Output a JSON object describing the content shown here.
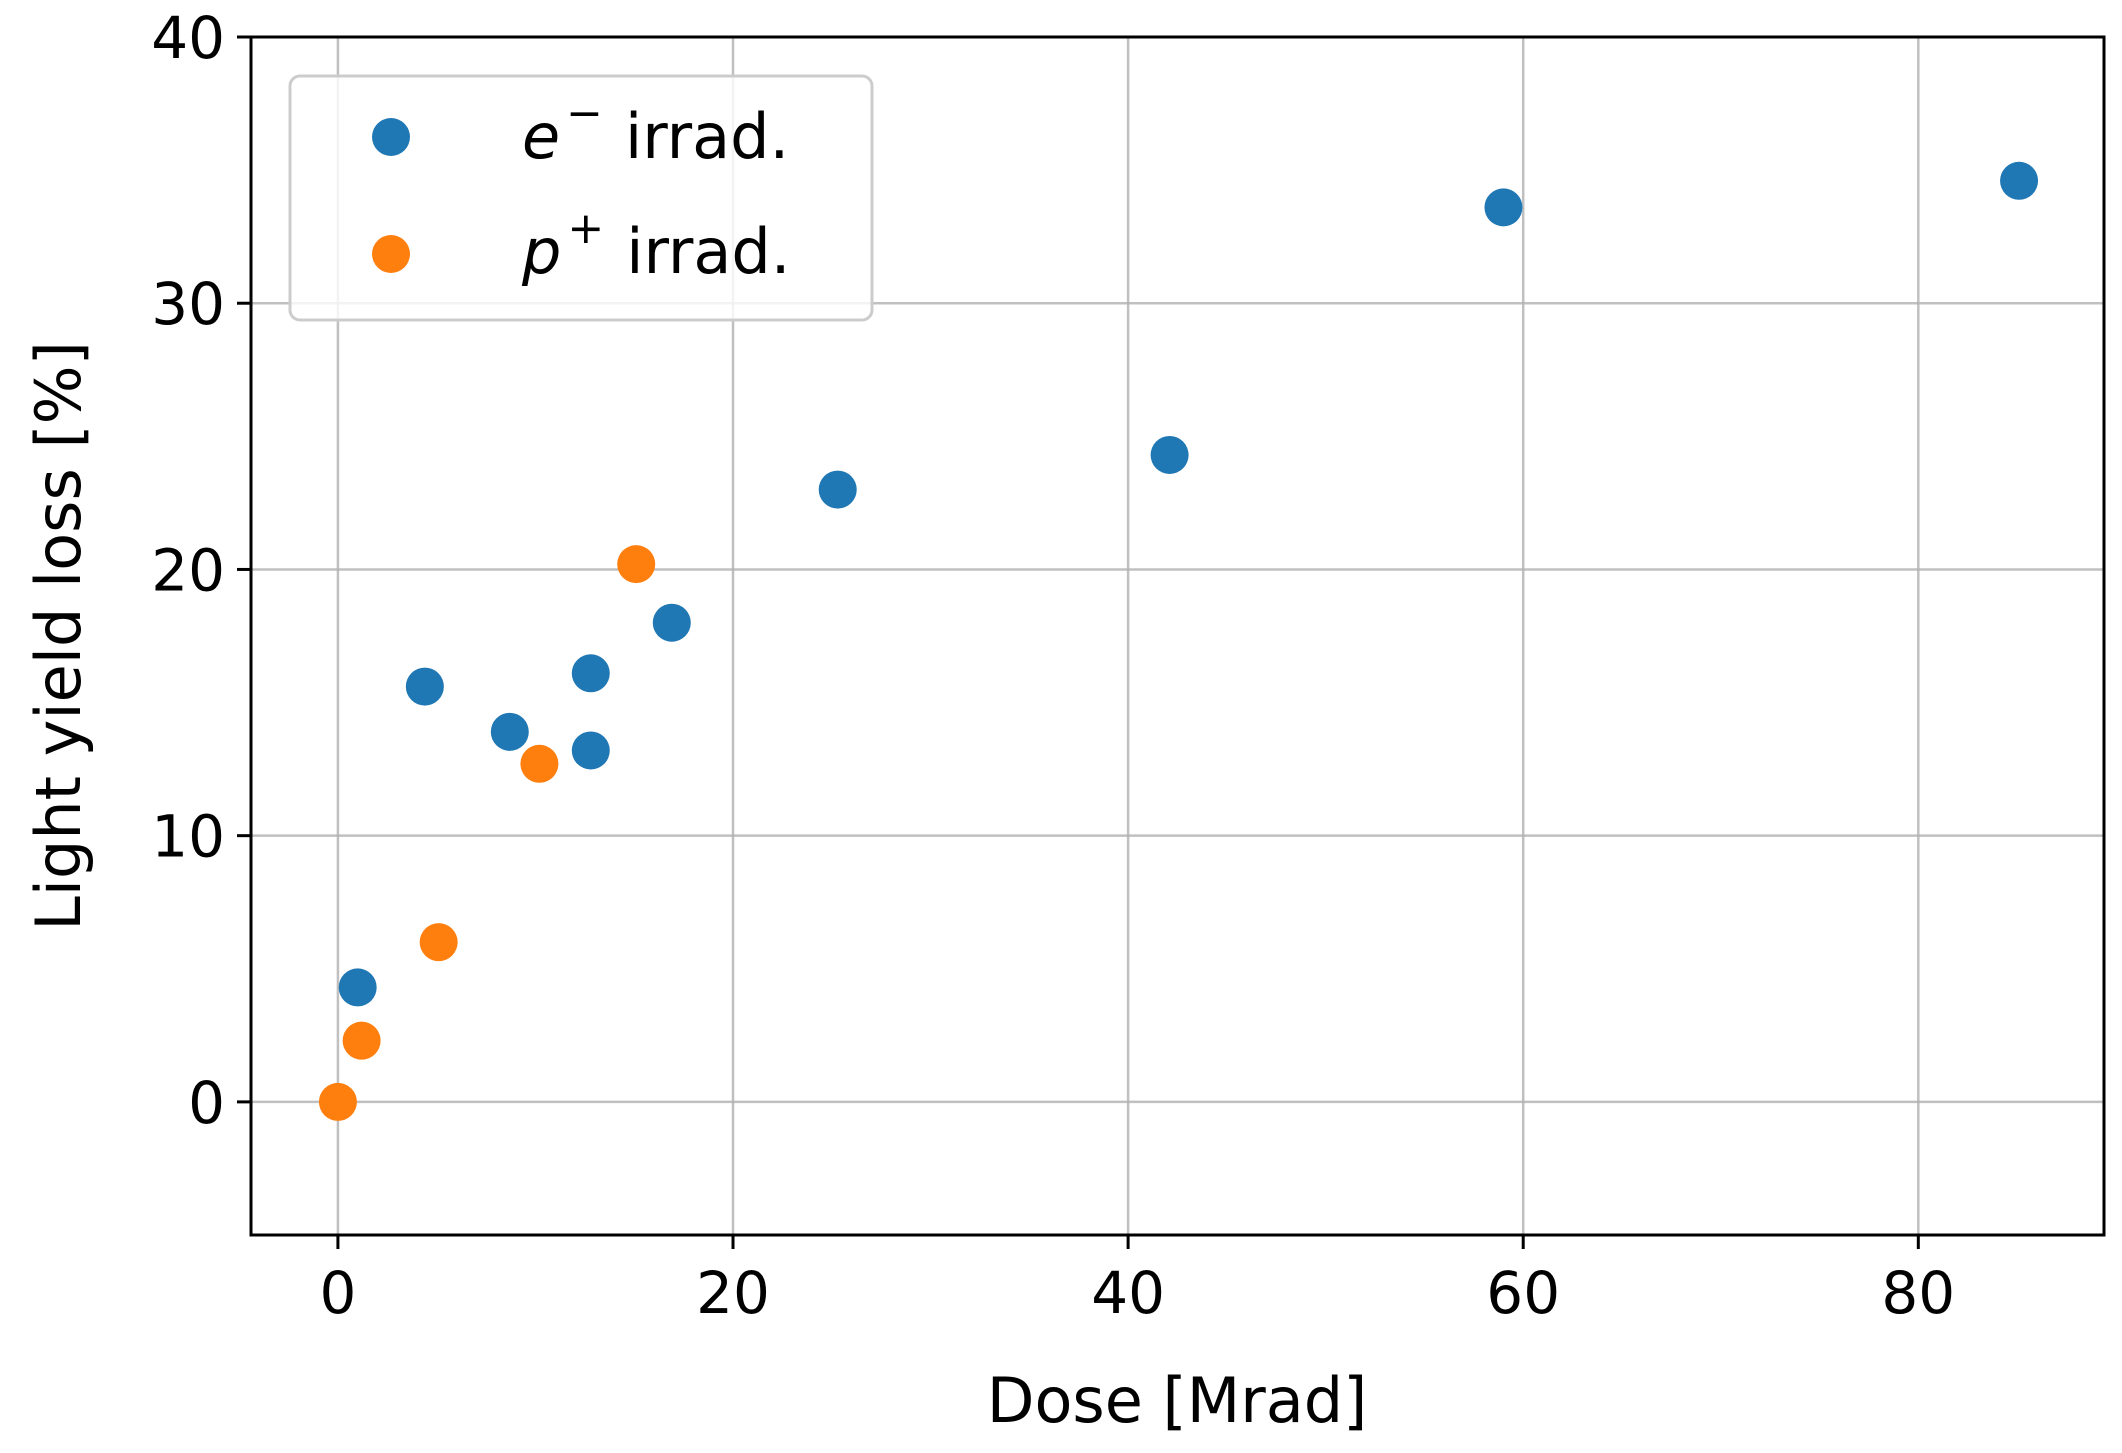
{
  "chart_data": {
    "type": "scatter",
    "title": "",
    "xlabel": "Dose [Mrad]",
    "ylabel": "Light yield loss [%]",
    "xlim": [
      -4.4,
      89.4
    ],
    "ylim": [
      -5,
      40
    ],
    "xticks": [
      0,
      20,
      40,
      60,
      80
    ],
    "yticks": [
      0,
      10,
      20,
      30,
      40
    ],
    "grid": true,
    "legend_position": "top-left",
    "series": [
      {
        "name": "e⁻ irrad.",
        "symbol": "e",
        "superscript": "−",
        "label_suffix": "irrad.",
        "color": "#1f77b4",
        "points": [
          {
            "x": 1.0,
            "y": 4.3
          },
          {
            "x": 4.4,
            "y": 15.6
          },
          {
            "x": 8.7,
            "y": 13.9
          },
          {
            "x": 12.8,
            "y": 16.1
          },
          {
            "x": 12.8,
            "y": 13.2
          },
          {
            "x": 16.9,
            "y": 18.0
          },
          {
            "x": 25.3,
            "y": 23.0
          },
          {
            "x": 42.1,
            "y": 24.3
          },
          {
            "x": 59.0,
            "y": 33.6
          },
          {
            "x": 85.1,
            "y": 34.6
          }
        ]
      },
      {
        "name": "p⁺ irrad.",
        "symbol": "p",
        "superscript": "+",
        "label_suffix": "irrad.",
        "color": "#ff7f0e",
        "points": [
          {
            "x": 0.0,
            "y": 0.0
          },
          {
            "x": 1.2,
            "y": 2.3
          },
          {
            "x": 5.1,
            "y": 6.0
          },
          {
            "x": 10.2,
            "y": 12.7
          },
          {
            "x": 15.1,
            "y": 20.2
          }
        ]
      }
    ]
  }
}
